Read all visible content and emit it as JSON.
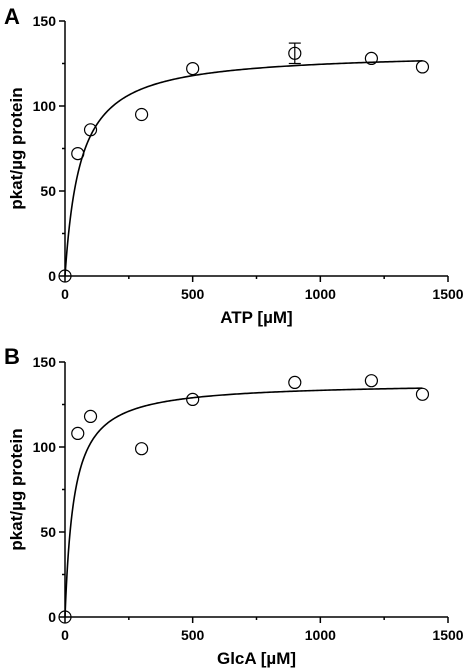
{
  "chart_data": [
    {
      "type": "scatter",
      "panel": "A",
      "xlabel": "ATP [µM]",
      "ylabel": "pkat/µg protein",
      "xlim": [
        0,
        1500
      ],
      "ylim": [
        0,
        150
      ],
      "xticks": [
        0,
        500,
        1000,
        1500
      ],
      "yticks": [
        0,
        50,
        100,
        150
      ],
      "x": [
        0,
        50,
        100,
        300,
        500,
        900,
        1200,
        1400
      ],
      "values": [
        0,
        72,
        86,
        95,
        122,
        131,
        128,
        123
      ],
      "error": [
        0,
        0,
        0,
        0,
        0,
        6,
        0,
        0
      ],
      "fit": {
        "model": "Michaelis-Menten",
        "vmax": 132,
        "km": 60
      }
    },
    {
      "type": "scatter",
      "panel": "B",
      "xlabel": "GlcA [µM]",
      "ylabel": "pkat/µg protein",
      "xlim": [
        0,
        1500
      ],
      "ylim": [
        0,
        150
      ],
      "xticks": [
        0,
        500,
        1000,
        1500
      ],
      "yticks": [
        0,
        50,
        100,
        150
      ],
      "x": [
        0,
        50,
        100,
        300,
        500,
        900,
        1200,
        1400
      ],
      "values": [
        0,
        108,
        118,
        99,
        128,
        138,
        139,
        131
      ],
      "error": [
        0,
        0,
        0,
        0,
        0,
        0,
        0,
        0
      ],
      "fit": {
        "model": "Michaelis-Menten",
        "vmax": 138,
        "km": 35
      }
    }
  ]
}
